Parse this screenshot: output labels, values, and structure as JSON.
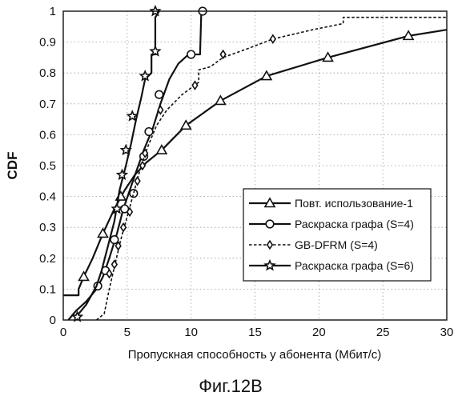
{
  "chart_data": {
    "type": "line",
    "title": "",
    "xlabel": "Пропускная способность у абонента (Мбит/с)",
    "ylabel": "CDF",
    "xlim": [
      0,
      30
    ],
    "ylim": [
      0,
      1
    ],
    "xticks": [
      0,
      5,
      10,
      15,
      20,
      25,
      30
    ],
    "yticks": [
      0,
      0.1,
      0.2,
      0.3,
      0.4,
      0.5,
      0.6,
      0.7,
      0.8,
      0.9,
      1
    ],
    "xtick_labels": [
      "0",
      "5",
      "10",
      "15",
      "20",
      "25",
      "30"
    ],
    "ytick_labels": [
      "0",
      "0.1",
      "0.2",
      "0.3",
      "0.4",
      "0.5",
      "0.6",
      "0.7",
      "0.8",
      "0.9",
      "1"
    ],
    "grid": true,
    "legend_position": "bottom-right",
    "series": [
      {
        "name": "Повт. использование-1",
        "marker": "triangle",
        "line": "solid",
        "points": [
          [
            0,
            0.08
          ],
          [
            1.2,
            0.08
          ],
          [
            1.2,
            0.1
          ],
          [
            1.6,
            0.14
          ],
          [
            2.3,
            0.2
          ],
          [
            3.1,
            0.28
          ],
          [
            4.0,
            0.36
          ],
          [
            4.8,
            0.42
          ],
          [
            5.6,
            0.47
          ],
          [
            6.5,
            0.51
          ],
          [
            7.7,
            0.55
          ],
          [
            9.6,
            0.63
          ],
          [
            12.3,
            0.71
          ],
          [
            15.9,
            0.79
          ],
          [
            20.7,
            0.85
          ],
          [
            27.0,
            0.92
          ],
          [
            30.0,
            0.94
          ]
        ],
        "marker_points": [
          [
            1.6,
            0.14
          ],
          [
            3.1,
            0.28
          ],
          [
            4.5,
            0.4
          ],
          [
            7.7,
            0.55
          ],
          [
            9.6,
            0.63
          ],
          [
            12.3,
            0.71
          ],
          [
            15.9,
            0.79
          ],
          [
            20.7,
            0.85
          ],
          [
            27.0,
            0.92
          ]
        ]
      },
      {
        "name": "Раскраска графа (S=4)",
        "marker": "circle",
        "line": "solid",
        "points": [
          [
            0.4,
            0
          ],
          [
            1.0,
            0.03
          ],
          [
            1.8,
            0.06
          ],
          [
            2.6,
            0.1
          ],
          [
            3.1,
            0.14
          ],
          [
            3.6,
            0.2
          ],
          [
            4.2,
            0.28
          ],
          [
            4.7,
            0.36
          ],
          [
            5.2,
            0.42
          ],
          [
            5.7,
            0.48
          ],
          [
            6.3,
            0.55
          ],
          [
            7.0,
            0.62
          ],
          [
            7.6,
            0.7
          ],
          [
            8.3,
            0.78
          ],
          [
            9.0,
            0.83
          ],
          [
            9.8,
            0.86
          ],
          [
            10.7,
            0.86
          ],
          [
            10.8,
            1.0
          ],
          [
            10.9,
            1.0
          ]
        ],
        "marker_points": [
          [
            2.7,
            0.11
          ],
          [
            3.3,
            0.16
          ],
          [
            4.0,
            0.26
          ],
          [
            4.8,
            0.36
          ],
          [
            5.5,
            0.41
          ],
          [
            6.3,
            0.53
          ],
          [
            6.7,
            0.61
          ],
          [
            7.5,
            0.73
          ],
          [
            10.0,
            0.86
          ],
          [
            10.9,
            1.0
          ]
        ]
      },
      {
        "name": "GB-DFRM (S=4)",
        "marker": "diamond",
        "line": "dashed",
        "points": [
          [
            2.6,
            0
          ],
          [
            3.2,
            0.02
          ],
          [
            3.6,
            0.1
          ],
          [
            4.1,
            0.19
          ],
          [
            4.5,
            0.26
          ],
          [
            4.9,
            0.32
          ],
          [
            5.3,
            0.38
          ],
          [
            5.7,
            0.44
          ],
          [
            6.1,
            0.5
          ],
          [
            6.6,
            0.56
          ],
          [
            7.3,
            0.63
          ],
          [
            8.1,
            0.68
          ],
          [
            9.3,
            0.73
          ],
          [
            10.6,
            0.77
          ],
          [
            10.6,
            0.81
          ],
          [
            11.5,
            0.82
          ],
          [
            12.5,
            0.85
          ],
          [
            14.5,
            0.88
          ],
          [
            16.4,
            0.91
          ],
          [
            19.5,
            0.94
          ],
          [
            21.9,
            0.96
          ],
          [
            21.9,
            0.98
          ],
          [
            30.0,
            0.98
          ]
        ],
        "marker_points": [
          [
            3.6,
            0.15
          ],
          [
            4.0,
            0.18
          ],
          [
            4.3,
            0.24
          ],
          [
            4.7,
            0.3
          ],
          [
            5.2,
            0.35
          ],
          [
            5.8,
            0.45
          ],
          [
            6.2,
            0.5
          ],
          [
            6.4,
            0.54
          ],
          [
            7.6,
            0.68
          ],
          [
            10.3,
            0.76
          ],
          [
            12.5,
            0.86
          ],
          [
            16.4,
            0.91
          ]
        ]
      },
      {
        "name": "Раскраска графа (S=6)",
        "marker": "star",
        "line": "solid",
        "points": [
          [
            1.0,
            0.01
          ],
          [
            1.8,
            0.05
          ],
          [
            2.6,
            0.11
          ],
          [
            3.0,
            0.16
          ],
          [
            3.5,
            0.24
          ],
          [
            4.0,
            0.32
          ],
          [
            4.4,
            0.42
          ],
          [
            4.9,
            0.5
          ],
          [
            5.3,
            0.57
          ],
          [
            5.7,
            0.65
          ],
          [
            6.1,
            0.72
          ],
          [
            6.4,
            0.78
          ],
          [
            6.9,
            0.8
          ],
          [
            6.9,
            0.86
          ],
          [
            7.2,
            0.86
          ],
          [
            7.2,
            0.98
          ],
          [
            7.5,
            1.0
          ]
        ],
        "marker_points": [
          [
            1.1,
            0.01
          ],
          [
            4.2,
            0.36
          ],
          [
            4.6,
            0.47
          ],
          [
            4.9,
            0.55
          ],
          [
            5.4,
            0.66
          ],
          [
            6.4,
            0.79
          ],
          [
            7.2,
            0.87
          ],
          [
            7.2,
            1.0
          ]
        ]
      }
    ]
  },
  "caption": "Фиг.12B"
}
